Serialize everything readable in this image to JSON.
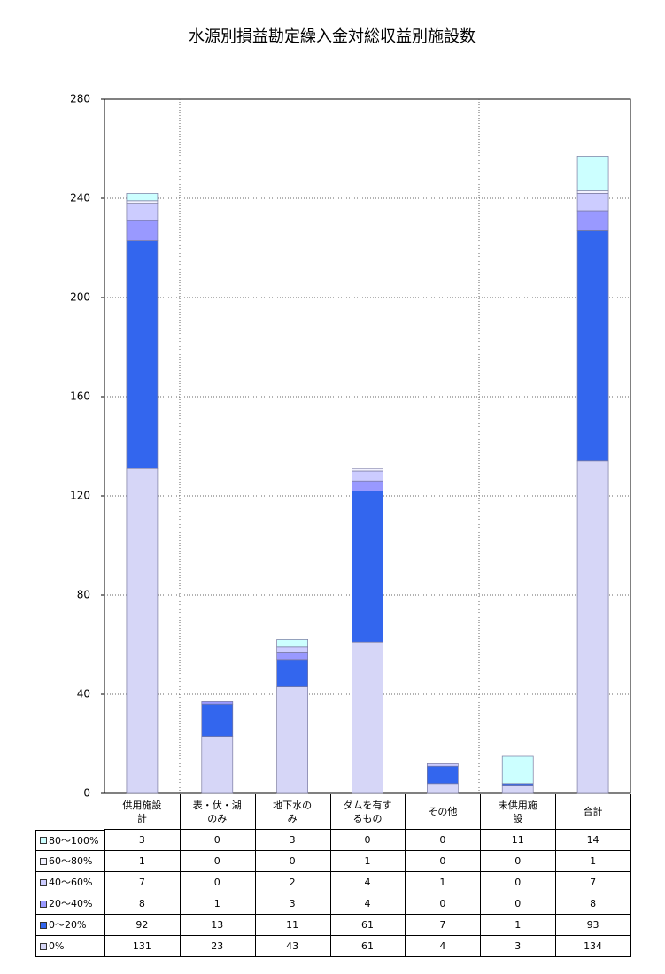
{
  "chart_data": {
    "type": "bar",
    "stacked": true,
    "title": "水源別損益勘定繰入金対総収益別施設数",
    "categories": [
      "供用施設\n計",
      "表・伏・湖\nのみ",
      "地下水の\nみ",
      "ダムを有す\nるもの",
      "その他",
      "未供用施\n設",
      "合計"
    ],
    "series": [
      {
        "name": "0%",
        "color": "#d6d6f7",
        "values": [
          131,
          23,
          43,
          61,
          4,
          3,
          134
        ]
      },
      {
        "name": "0～20%",
        "color": "#3366ee",
        "values": [
          92,
          13,
          11,
          61,
          7,
          1,
          93
        ]
      },
      {
        "name": "20～40%",
        "color": "#9999ff",
        "values": [
          8,
          1,
          3,
          4,
          0,
          0,
          8
        ]
      },
      {
        "name": "40～60%",
        "color": "#ccccff",
        "values": [
          7,
          0,
          2,
          4,
          1,
          0,
          7
        ]
      },
      {
        "name": "60～80%",
        "color": "#f2f2ff",
        "values": [
          1,
          0,
          0,
          1,
          0,
          0,
          1
        ]
      },
      {
        "name": "80～100%",
        "color": "#ccffff",
        "values": [
          3,
          0,
          3,
          0,
          0,
          11,
          14
        ]
      }
    ],
    "ylim": [
      0,
      280
    ],
    "yticks": [
      0,
      40,
      80,
      120,
      160,
      200,
      240,
      280
    ],
    "grid": true
  }
}
